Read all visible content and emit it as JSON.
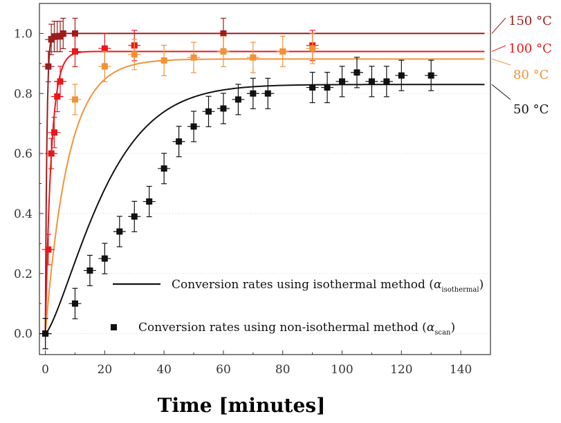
{
  "chart_data": {
    "type": "scatter",
    "title": "",
    "xlabel": "Time [minutes]",
    "ylabel": "",
    "xlim": [
      -2,
      150
    ],
    "ylim": [
      -0.07,
      1.1
    ],
    "xticks": [
      "0",
      "20",
      "40",
      "60",
      "80",
      "100",
      "120",
      "140"
    ],
    "yticks": [
      "0.0",
      "0.2",
      "0.4",
      "0.6",
      "0.8",
      "1.0"
    ],
    "grid": "dotted horizontal",
    "legend": {
      "position": "bottom-right",
      "line_label": "Conversion rates using isothermal method (",
      "line_symbol": "α",
      "line_sub": "isothermal",
      "marker_label": "Conversion rates using non-isothermal method (",
      "marker_symbol": "α",
      "marker_sub": "scan",
      "close": ")"
    },
    "series": [
      {
        "name": "150 °C",
        "color": "#9b1c1c",
        "k": 2.0,
        "plateau": 1.0,
        "points": [
          [
            0,
            0
          ],
          [
            1,
            0.89
          ],
          [
            2,
            0.98
          ],
          [
            3,
            0.99
          ],
          [
            4,
            0.99
          ],
          [
            5,
            0.99
          ],
          [
            6,
            1.0
          ],
          [
            10,
            1.0
          ],
          [
            60,
            1.0
          ]
        ]
      },
      {
        "name": "100 °C",
        "color": "#e8171c",
        "k": 0.5,
        "plateau": 0.94,
        "points": [
          [
            1,
            0.28
          ],
          [
            2,
            0.6
          ],
          [
            3,
            0.67
          ],
          [
            4,
            0.79
          ],
          [
            5,
            0.84
          ],
          [
            10,
            0.94
          ],
          [
            20,
            0.95
          ],
          [
            30,
            0.96
          ],
          [
            90,
            0.96
          ]
        ]
      },
      {
        "name": "80 °C",
        "color": "#f29237",
        "k": 0.13,
        "plateau": 0.915,
        "points": [
          [
            10,
            0.78
          ],
          [
            20,
            0.89
          ],
          [
            30,
            0.93
          ],
          [
            40,
            0.91
          ],
          [
            50,
            0.92
          ],
          [
            60,
            0.94
          ],
          [
            70,
            0.92
          ],
          [
            80,
            0.94
          ],
          [
            90,
            0.95
          ]
        ]
      },
      {
        "name": "50 °C",
        "color": "#111111",
        "k": 0.045,
        "plateau": 0.83,
        "points": [
          [
            0,
            0
          ],
          [
            10,
            0.1
          ],
          [
            15,
            0.21
          ],
          [
            20,
            0.25
          ],
          [
            25,
            0.34
          ],
          [
            30,
            0.39
          ],
          [
            35,
            0.44
          ],
          [
            40,
            0.55
          ],
          [
            45,
            0.64
          ],
          [
            50,
            0.69
          ],
          [
            55,
            0.74
          ],
          [
            60,
            0.75
          ],
          [
            65,
            0.78
          ],
          [
            70,
            0.8
          ],
          [
            75,
            0.8
          ],
          [
            90,
            0.82
          ],
          [
            95,
            0.82
          ],
          [
            100,
            0.84
          ],
          [
            105,
            0.87
          ],
          [
            110,
            0.84
          ],
          [
            115,
            0.84
          ],
          [
            120,
            0.86
          ],
          [
            130,
            0.86
          ]
        ]
      }
    ]
  }
}
